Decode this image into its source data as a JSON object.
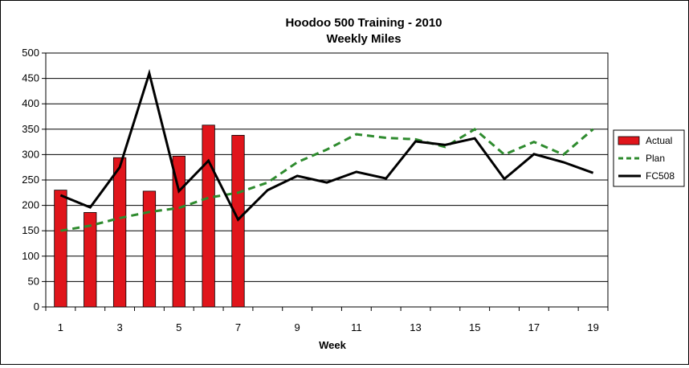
{
  "chart_data": {
    "type": "bar",
    "title": "Hoodoo 500 Training - 2010",
    "subtitle": "Weekly Miles",
    "xlabel": "Week",
    "ylabel": "",
    "ylim": [
      0,
      500
    ],
    "yticks": [
      "0",
      "50",
      "100",
      "150",
      "200",
      "250",
      "300",
      "350",
      "400",
      "450",
      "500"
    ],
    "xtick_labels": [
      "1",
      "3",
      "5",
      "7",
      "9",
      "11",
      "13",
      "15",
      "17",
      "19"
    ],
    "x": [
      1,
      2,
      3,
      4,
      5,
      6,
      7,
      8,
      9,
      10,
      11,
      12,
      13,
      14,
      15,
      16,
      17,
      18,
      19
    ],
    "grid": true,
    "legend_position": "right",
    "series": [
      {
        "name": "Actual",
        "kind": "bar",
        "color": "#e0151b",
        "values": [
          230,
          186,
          294,
          228,
          297,
          358,
          338,
          null,
          null,
          null,
          null,
          null,
          null,
          null,
          null,
          null,
          null,
          null,
          null
        ]
      },
      {
        "name": "Plan",
        "kind": "line",
        "style": "dashed",
        "color": "#2e8b2e",
        "values": [
          150,
          160,
          175,
          187,
          195,
          215,
          225,
          245,
          285,
          310,
          340,
          333,
          330,
          315,
          350,
          300,
          325,
          300,
          350
        ]
      },
      {
        "name": "FC508",
        "kind": "line",
        "style": "solid",
        "color": "#000000",
        "values": [
          220,
          196,
          275,
          460,
          228,
          288,
          172,
          230,
          258,
          245,
          266,
          253,
          326,
          319,
          332,
          252,
          301,
          285,
          264
        ]
      }
    ]
  }
}
